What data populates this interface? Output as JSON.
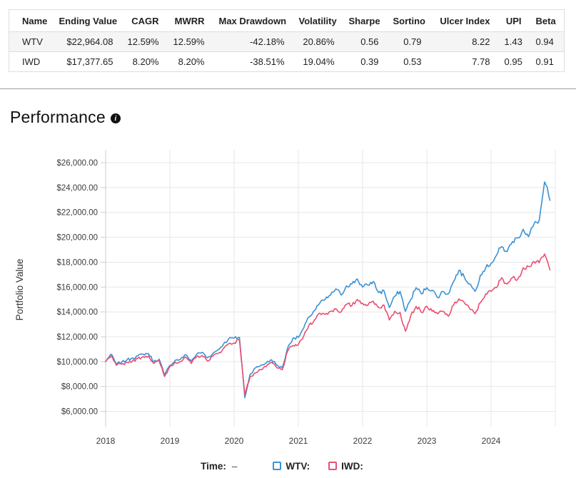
{
  "table": {
    "headers": [
      "Name",
      "Ending Value",
      "CAGR",
      "MWRR",
      "Max Drawdown",
      "Volatility",
      "Sharpe",
      "Sortino",
      "Ulcer Index",
      "UPI",
      "Beta"
    ],
    "rows": [
      {
        "name": "WTV",
        "cells": [
          "$22,964.08",
          "12.59%",
          "12.59%",
          "-42.18%",
          "20.86%",
          "0.56",
          "0.79",
          "8.22",
          "1.43",
          "0.94"
        ]
      },
      {
        "name": "IWD",
        "cells": [
          "$17,377.65",
          "8.20%",
          "8.20%",
          "-38.51%",
          "19.04%",
          "0.39",
          "0.53",
          "7.78",
          "0.95",
          "0.91"
        ]
      }
    ]
  },
  "section": {
    "title": "Performance",
    "info_icon": "i"
  },
  "chart_data": {
    "type": "line",
    "title": "",
    "xlabel": "",
    "ylabel": "Portfolio Value",
    "grid": true,
    "xlim": [
      2018,
      2025
    ],
    "ylim": [
      4800,
      27050
    ],
    "x_ticks": [
      2018,
      2019,
      2020,
      2021,
      2022,
      2023,
      2024
    ],
    "y_ticks": [
      26000,
      24000,
      22000,
      20000,
      18000,
      16000,
      14000,
      12000,
      10000,
      8000,
      6000
    ],
    "y_tick_labels": [
      "$26,000.00",
      "$24,000.00",
      "$22,000.00",
      "$20,000.00",
      "$18,000.00",
      "$16,000.00",
      "$14,000.00",
      "$12,000.00",
      "$10,000.00",
      "$8,000.00",
      "$6,000.00"
    ],
    "x_start_year": 2018,
    "x_step": "monthly",
    "series": [
      {
        "name": "WTV",
        "color": "#3a92d4",
        "values": [
          10000,
          10600,
          9800,
          9950,
          10150,
          10300,
          10450,
          10600,
          10650,
          10000,
          10200,
          8900,
          9700,
          10100,
          10200,
          10550,
          10050,
          10600,
          10750,
          10300,
          10650,
          10950,
          11400,
          11850,
          11900,
          11950,
          7100,
          9000,
          9500,
          9700,
          9900,
          10150,
          9700,
          9500,
          11100,
          11900,
          11950,
          12700,
          13600,
          14100,
          14700,
          15000,
          15350,
          15850,
          15350,
          16100,
          16250,
          16650,
          16000,
          16150,
          16450,
          15550,
          15700,
          14350,
          15250,
          15650,
          14050,
          15000,
          15950,
          15450,
          15950,
          15750,
          15150,
          15650,
          15450,
          16450,
          17350,
          16800,
          16250,
          15650,
          16950,
          17550,
          17900,
          18550,
          19250,
          18850,
          19650,
          19950,
          20650,
          20050,
          21050,
          21350,
          24450,
          22964
        ]
      },
      {
        "name": "IWD",
        "color": "#e94f72",
        "values": [
          10000,
          10450,
          9700,
          9800,
          9950,
          10050,
          10250,
          10400,
          10450,
          9850,
          10050,
          8800,
          9600,
          9950,
          10000,
          10350,
          9850,
          10400,
          10500,
          10050,
          10450,
          10650,
          11050,
          11450,
          11500,
          11750,
          7350,
          8800,
          9100,
          9350,
          9600,
          9950,
          9500,
          9350,
          10850,
          11300,
          11350,
          12050,
          12950,
          13350,
          13900,
          13800,
          14050,
          14250,
          14000,
          14600,
          14500,
          15000,
          14700,
          14550,
          14850,
          14350,
          14550,
          13350,
          14050,
          13950,
          12450,
          13700,
          14450,
          13950,
          14450,
          14050,
          13850,
          14050,
          13650,
          14550,
          15050,
          14750,
          14250,
          13850,
          14750,
          15450,
          15650,
          15950,
          16750,
          16250,
          16750,
          16650,
          17550,
          17650,
          18050,
          17950,
          18650,
          17378
        ]
      }
    ]
  },
  "legend": {
    "time_label": "Time:",
    "time_value": "–",
    "items": [
      {
        "label": "WTV:",
        "color": "#3a92d4"
      },
      {
        "label": "IWD:",
        "color": "#e94f72"
      }
    ]
  },
  "colors": {
    "gridline": "#e7e7e7",
    "axis": "#cccccc",
    "tick_text": "#3c3c3c",
    "row_stripe": "#f5f5f5",
    "table_border": "#dddddd",
    "divider": "#9e9e9e"
  }
}
